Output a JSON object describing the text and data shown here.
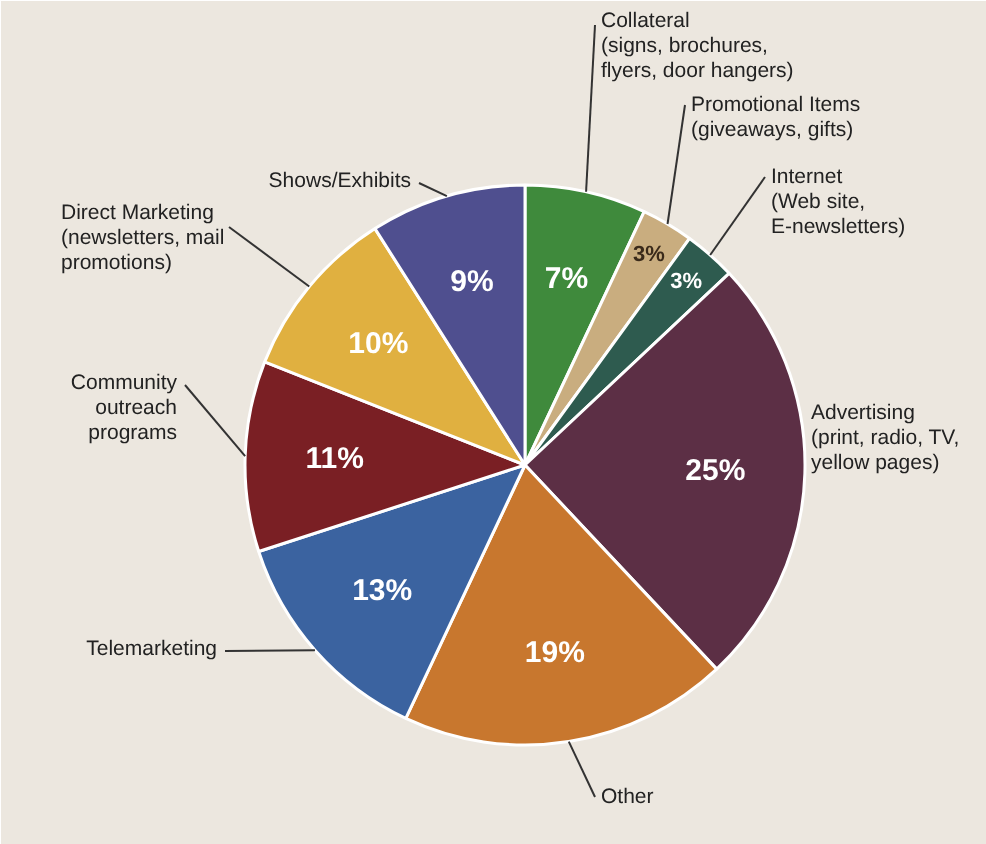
{
  "chart_data": {
    "type": "pie",
    "categories": [
      "Collateral\n(signs, brochures,\nflyers, door hangers)",
      "Promotional Items\n(giveaways, gifts)",
      "Internet\n(Web site,\nE-newsletters)",
      "Advertising\n(print, radio, TV,\nyellow pages)",
      "Other",
      "Telemarketing",
      "Community\noutreach\nprograms",
      "Direct Marketing\n(newsletters, mail\npromotions)",
      "Shows/Exhibits"
    ],
    "values": [
      7,
      3,
      3,
      25,
      19,
      13,
      11,
      10,
      9
    ],
    "value_labels": [
      "7%",
      "3%",
      "3%",
      "25%",
      "19%",
      "13%",
      "11%",
      "10%",
      "9%"
    ],
    "colors": [
      "#3f8a3c",
      "#c9ad7f",
      "#2e5b4f",
      "#5c2f45",
      "#c8772e",
      "#3b63a0",
      "#7a1f24",
      "#e0b040",
      "#4f4f8f"
    ]
  }
}
